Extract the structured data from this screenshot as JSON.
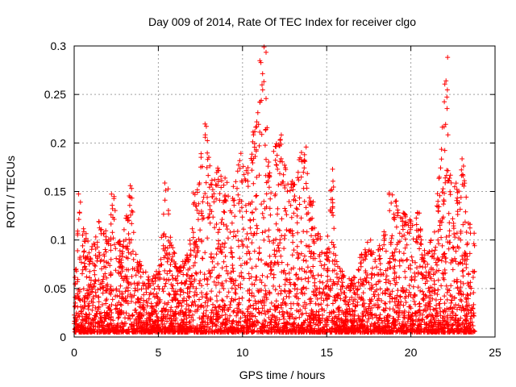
{
  "chart_data": {
    "type": "scatter",
    "title": "Day 009 of 2014, Rate Of TEC Index for receiver clgo",
    "xlabel": "GPS time / hours",
    "ylabel": "ROTI / TECUs",
    "xlim": [
      0,
      25
    ],
    "ylim": [
      0,
      0.3
    ],
    "xticks": [
      0,
      5,
      10,
      15,
      20,
      25
    ],
    "yticks": [
      0,
      0.05,
      0.1,
      0.15,
      0.2,
      0.25,
      0.3
    ],
    "xtick_labels": [
      "0",
      "5",
      "10",
      "15",
      "20",
      "25"
    ],
    "ytick_labels": [
      "0",
      "0.05",
      "0.1",
      "0.15",
      "0.2",
      "0.25",
      "0.3"
    ],
    "grid": true,
    "marker": "+",
    "series": [
      {
        "name": "ROTI",
        "color": "#ff0000",
        "x_range": [
          0,
          23.8
        ],
        "envelope": [
          [
            0.0,
            0.07
          ],
          [
            0.3,
            0.15
          ],
          [
            0.6,
            0.11
          ],
          [
            1.0,
            0.09
          ],
          [
            1.5,
            0.12
          ],
          [
            2.0,
            0.11
          ],
          [
            2.3,
            0.15
          ],
          [
            2.8,
            0.1
          ],
          [
            3.2,
            0.14
          ],
          [
            3.4,
            0.16
          ],
          [
            3.8,
            0.08
          ],
          [
            4.5,
            0.06
          ],
          [
            5.0,
            0.07
          ],
          [
            5.5,
            0.165
          ],
          [
            5.8,
            0.1
          ],
          [
            6.2,
            0.07
          ],
          [
            6.8,
            0.09
          ],
          [
            7.2,
            0.155
          ],
          [
            7.6,
            0.205
          ],
          [
            7.8,
            0.22
          ],
          [
            8.2,
            0.16
          ],
          [
            8.6,
            0.185
          ],
          [
            9.0,
            0.165
          ],
          [
            9.4,
            0.15
          ],
          [
            9.8,
            0.19
          ],
          [
            10.2,
            0.18
          ],
          [
            10.6,
            0.21
          ],
          [
            10.9,
            0.24
          ],
          [
            11.1,
            0.295
          ],
          [
            11.3,
            0.3
          ],
          [
            11.6,
            0.19
          ],
          [
            12.0,
            0.2
          ],
          [
            12.2,
            0.21
          ],
          [
            12.6,
            0.17
          ],
          [
            13.0,
            0.16
          ],
          [
            13.4,
            0.19
          ],
          [
            13.7,
            0.2
          ],
          [
            14.0,
            0.16
          ],
          [
            14.5,
            0.11
          ],
          [
            15.0,
            0.09
          ],
          [
            15.3,
            0.175
          ],
          [
            15.6,
            0.08
          ],
          [
            16.0,
            0.065
          ],
          [
            16.5,
            0.06
          ],
          [
            17.0,
            0.085
          ],
          [
            17.5,
            0.1
          ],
          [
            18.0,
            0.09
          ],
          [
            18.5,
            0.11
          ],
          [
            18.8,
            0.15
          ],
          [
            19.2,
            0.14
          ],
          [
            19.6,
            0.13
          ],
          [
            20.0,
            0.125
          ],
          [
            20.4,
            0.13
          ],
          [
            20.8,
            0.09
          ],
          [
            21.2,
            0.1
          ],
          [
            21.6,
            0.15
          ],
          [
            21.9,
            0.22
          ],
          [
            22.1,
            0.29
          ],
          [
            22.4,
            0.175
          ],
          [
            22.8,
            0.16
          ],
          [
            23.1,
            0.185
          ],
          [
            23.4,
            0.12
          ],
          [
            23.8,
            0.11
          ]
        ],
        "floor": 0.005
      }
    ]
  }
}
